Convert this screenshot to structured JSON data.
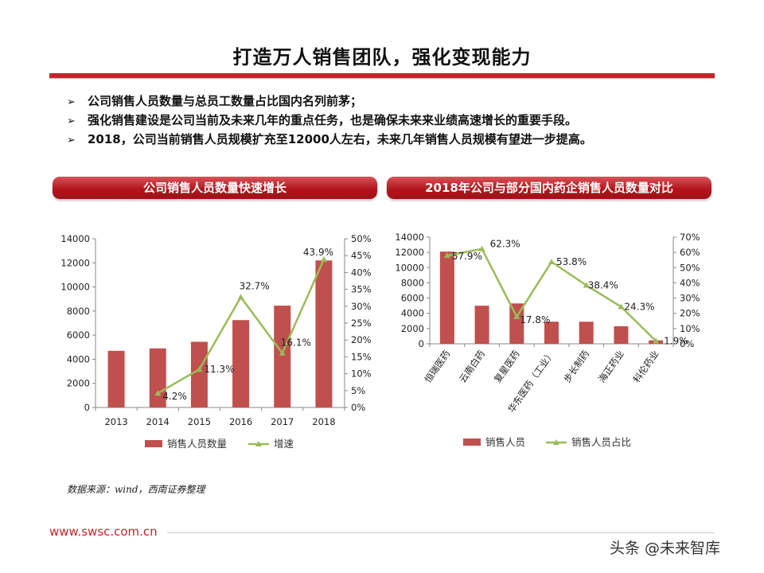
{
  "title": "打造万人销售团队，强化变现能力",
  "bullets": [
    "公司销售人员数量与总员工数量占比国内名列前茅；",
    "强化销售建设是公司当前及未来几年的重点任务，也是确保未来来业绩高速增长的重要手段。",
    "2018，公司当前销售人员规模扩充至12000人左右，未来几年销售人员规模有望进一步提高。"
  ],
  "bullet_marker": "➢",
  "source": "数据来源：wind，西南证券整理",
  "footer_url": "www.swsc.com.cn",
  "watermark": "头条 @未来智库",
  "colors": {
    "bar": "#c0504d",
    "line": "#9bbb59",
    "brand": "#c0272d"
  },
  "chart_data": [
    {
      "type": "bar",
      "title": "公司销售人员数量快速增长",
      "categories": [
        "2013",
        "2014",
        "2015",
        "2016",
        "2017",
        "2018"
      ],
      "series": [
        {
          "name": "销售人员数量",
          "type": "bar",
          "axis": "left",
          "values": [
            4700,
            4900,
            5450,
            7250,
            8450,
            12200
          ]
        },
        {
          "name": "增速",
          "type": "line",
          "axis": "right",
          "values": [
            null,
            4.2,
            11.3,
            32.7,
            16.1,
            43.9
          ],
          "labels": [
            "",
            "4.2%",
            "11.3%",
            "32.7%",
            "16.1%",
            "43.9%"
          ]
        }
      ],
      "left_ticks": [
        "14000",
        "12000",
        "10000",
        "8000",
        "6000",
        "4000",
        "2000",
        "0"
      ],
      "right_ticks": [
        "50%",
        "45%",
        "40%",
        "35%",
        "30%",
        "25%",
        "20%",
        "15%",
        "10%",
        "5%",
        "0%"
      ],
      "ylim": [
        0,
        14000
      ],
      "y2lim": [
        0,
        50
      ],
      "legend": "bottom",
      "grid": false
    },
    {
      "type": "bar",
      "title": "2018年公司与部分国内药企销售人员数量对比",
      "categories": [
        "恒瑞医药",
        "云南白药",
        "复星医药",
        "华东医药（工业）",
        "步长制药",
        "海正药业",
        "科伦药业"
      ],
      "series": [
        {
          "name": "销售人员",
          "type": "bar",
          "axis": "left",
          "values": [
            12100,
            5000,
            5300,
            2900,
            2900,
            2300,
            450
          ]
        },
        {
          "name": "销售人员占比",
          "type": "line",
          "axis": "right",
          "values": [
            57.9,
            62.3,
            17.8,
            53.8,
            38.4,
            24.3,
            1.9
          ],
          "labels": [
            "57.9%",
            "62.3%",
            "17.8%",
            "53.8%",
            "38.4%",
            "24.3%",
            "1.9%"
          ]
        }
      ],
      "left_ticks": [
        "14000",
        "12000",
        "10000",
        "8000",
        "6000",
        "4000",
        "2000",
        "0"
      ],
      "right_ticks": [
        "70%",
        "60%",
        "50%",
        "40%",
        "30%",
        "20%",
        "10%",
        "0%"
      ],
      "ylim": [
        0,
        14000
      ],
      "y2lim": [
        0,
        70
      ],
      "legend": "bottom",
      "grid": false
    }
  ]
}
